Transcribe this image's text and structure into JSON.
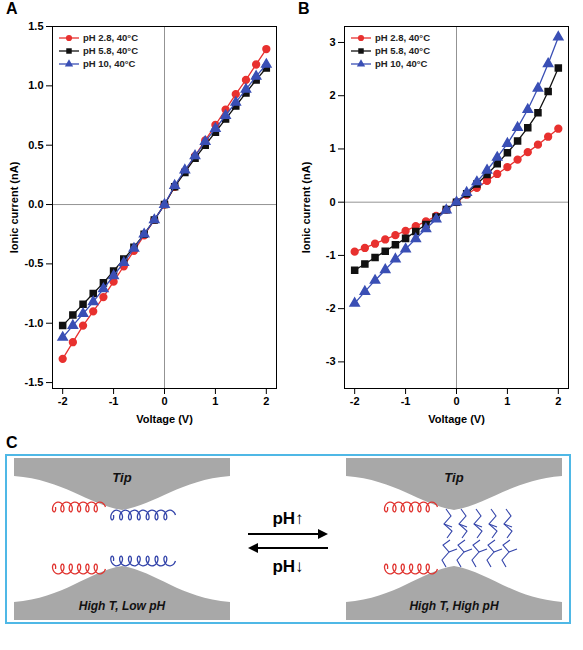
{
  "chart_data": [
    {
      "panel": "A",
      "type": "line",
      "x_label": "Voltage (V)",
      "y_label": "Ionic current (nA)",
      "x": [
        -2,
        -1.8,
        -1.6,
        -1.4,
        -1.2,
        -1,
        -0.8,
        -0.6,
        -0.4,
        -0.2,
        0,
        0.2,
        0.4,
        0.6,
        0.8,
        1,
        1.2,
        1.4,
        1.6,
        1.8,
        2
      ],
      "series": [
        {
          "name": "pH 2.8, 40°C",
          "color": "#e8312f",
          "marker": "circle",
          "line_style": "solid",
          "values": [
            -1.3,
            -1.16,
            -1.02,
            -0.9,
            -0.78,
            -0.65,
            -0.52,
            -0.39,
            -0.26,
            -0.13,
            0,
            0.15,
            0.28,
            0.41,
            0.54,
            0.67,
            0.8,
            0.93,
            1.05,
            1.18,
            1.31
          ]
        },
        {
          "name": "pH 5.8, 40°C",
          "color": "#111111",
          "marker": "square",
          "line_style": "solid",
          "values": [
            -1.02,
            -0.93,
            -0.84,
            -0.75,
            -0.66,
            -0.56,
            -0.46,
            -0.36,
            -0.25,
            -0.13,
            0,
            0.15,
            0.27,
            0.39,
            0.5,
            0.61,
            0.72,
            0.83,
            0.94,
            1.05,
            1.15
          ]
        },
        {
          "name": "pH 10, 40°C",
          "color": "#3a4fb5",
          "marker": "triangle",
          "line_style": "solid",
          "values": [
            -1.12,
            -1.02,
            -0.92,
            -0.82,
            -0.71,
            -0.6,
            -0.49,
            -0.37,
            -0.25,
            -0.13,
            0,
            0.16,
            0.29,
            0.41,
            0.53,
            0.64,
            0.75,
            0.86,
            0.97,
            1.08,
            1.18
          ]
        }
      ],
      "xlim": [
        -2.2,
        2.2
      ],
      "xticks": [
        -2,
        -1,
        0,
        1,
        2
      ],
      "ylim": [
        -1.55,
        1.5
      ],
      "yticks": [
        -1.5,
        {
          "value": -1,
          "label": "-1.0"
        },
        -0.5,
        {
          "value": 0,
          "label": "0.0"
        },
        0.5,
        {
          "value": 1,
          "label": "1.0"
        },
        1.5
      ],
      "legend": "upper left"
    },
    {
      "panel": "B",
      "type": "line",
      "x_label": "Voltage (V)",
      "y_label": "Ionic current (nA)",
      "x": [
        -2,
        -1.8,
        -1.6,
        -1.4,
        -1.2,
        -1,
        -0.8,
        -0.6,
        -0.4,
        -0.2,
        0,
        0.2,
        0.4,
        0.6,
        0.8,
        1,
        1.2,
        1.4,
        1.6,
        1.8,
        2
      ],
      "series": [
        {
          "name": "pH 2.8, 40°C",
          "color": "#e8312f",
          "marker": "circle",
          "line_style": "solid",
          "values": [
            -0.93,
            -0.86,
            -0.78,
            -0.7,
            -0.62,
            -0.54,
            -0.45,
            -0.36,
            -0.26,
            -0.14,
            0,
            0.14,
            0.27,
            0.4,
            0.53,
            0.66,
            0.8,
            0.94,
            1.08,
            1.23,
            1.38
          ]
        },
        {
          "name": "pH 5.8, 40°C",
          "color": "#111111",
          "marker": "square",
          "line_style": "solid",
          "values": [
            -1.28,
            -1.16,
            -1.04,
            -0.92,
            -0.8,
            -0.68,
            -0.55,
            -0.42,
            -0.28,
            -0.14,
            0,
            0.16,
            0.34,
            0.52,
            0.72,
            0.93,
            1.15,
            1.4,
            1.68,
            2.08,
            2.52
          ]
        },
        {
          "name": "pH 10, 40°C",
          "color": "#3a4fb5",
          "marker": "triangle",
          "line_style": "solid",
          "values": [
            -1.9,
            -1.68,
            -1.47,
            -1.27,
            -1.07,
            -0.88,
            -0.69,
            -0.5,
            -0.32,
            -0.15,
            0,
            0.18,
            0.38,
            0.6,
            0.84,
            1.1,
            1.4,
            1.74,
            2.14,
            2.6,
            3.1
          ]
        }
      ],
      "xlim": [
        -2.2,
        2.2
      ],
      "xticks": [
        -2,
        -1,
        0,
        1,
        2
      ],
      "ylim": [
        -3.5,
        3.3
      ],
      "yticks": [
        -3,
        -2,
        -1,
        0,
        1,
        2,
        3
      ],
      "legend": "upper left"
    }
  ],
  "panel_c": {
    "panel": "C",
    "forward": "pH↑",
    "backward": "pH↓",
    "left": {
      "tip": "Tip",
      "condition": "High T, Low pH"
    },
    "right": {
      "tip": "Tip",
      "condition": "High T, High pH"
    }
  }
}
